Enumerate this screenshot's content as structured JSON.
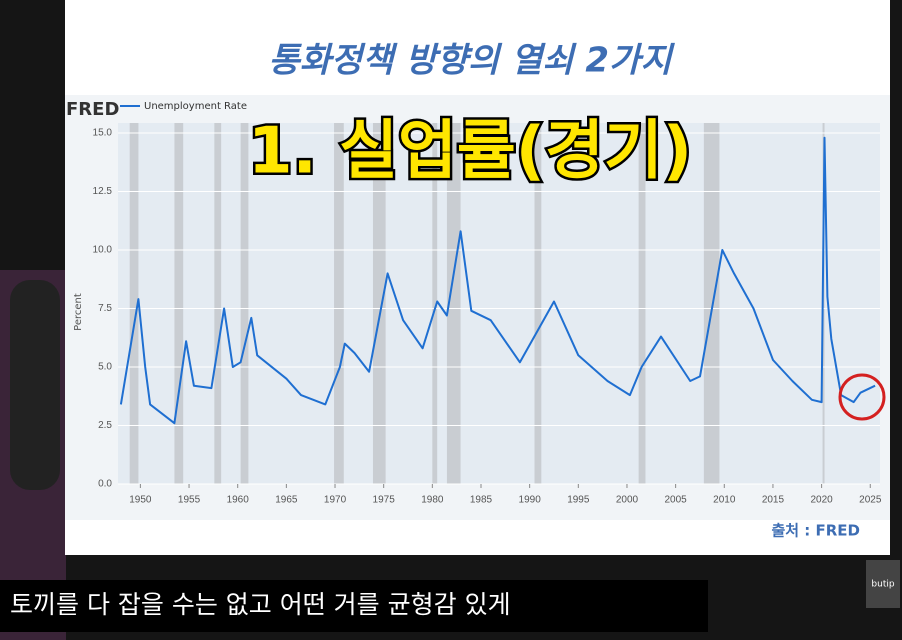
{
  "slide_title": "통화정책 방향의 열쇠 2가지",
  "overlay_text": "1. 실업률(경기)",
  "logo": "FRED",
  "source": "출처 : FRED",
  "caption": "토끼를 다 잡을 수는 없고 어떤 거를 균형감 있게",
  "watermark": "butip",
  "chart_data": {
    "type": "line",
    "ylabel": "Percent",
    "x": [
      1948.0,
      1949.8,
      1950.5,
      1951.0,
      1953.5,
      1954.7,
      1955.5,
      1957.3,
      1958.6,
      1959.5,
      1960.3,
      1961.4,
      1962.0,
      1965.0,
      1966.5,
      1969.0,
      1970.5,
      1971.0,
      1972.0,
      1973.5,
      1975.4,
      1977.0,
      1979.0,
      1980.5,
      1981.5,
      1982.9,
      1984.0,
      1986.0,
      1989.0,
      1992.5,
      1995.0,
      1998.0,
      2000.3,
      2001.5,
      2003.5,
      2006.5,
      2007.5,
      2009.8,
      2011.0,
      2013.0,
      2015.0,
      2017.0,
      2019.0,
      2020.0,
      2020.3,
      2020.6,
      2021.0,
      2022.0,
      2023.3,
      2024.0,
      2025.5
    ],
    "series": [
      {
        "name": "Unemployment Rate",
        "color": "#1f6fd1",
        "values": [
          3.4,
          7.9,
          5.0,
          3.4,
          2.6,
          6.1,
          4.2,
          4.1,
          7.5,
          5.0,
          5.2,
          7.1,
          5.5,
          4.5,
          3.8,
          3.4,
          5.0,
          6.0,
          5.6,
          4.8,
          9.0,
          7.0,
          5.8,
          7.8,
          7.2,
          10.8,
          7.4,
          7.0,
          5.2,
          7.8,
          5.5,
          4.4,
          3.8,
          5.0,
          6.3,
          4.4,
          4.6,
          10.0,
          9.0,
          7.5,
          5.3,
          4.4,
          3.6,
          3.5,
          14.8,
          8.0,
          6.2,
          3.8,
          3.5,
          3.9,
          4.2
        ]
      }
    ],
    "recessions": [
      [
        1948.9,
        1949.8
      ],
      [
        1953.5,
        1954.4
      ],
      [
        1957.6,
        1958.3
      ],
      [
        1960.3,
        1961.1
      ],
      [
        1969.9,
        1970.9
      ],
      [
        1973.9,
        1975.2
      ],
      [
        1980.0,
        1980.5
      ],
      [
        1981.5,
        1982.9
      ],
      [
        1990.5,
        1991.2
      ],
      [
        2001.2,
        2001.9
      ],
      [
        2007.9,
        2009.5
      ],
      [
        2020.1,
        2020.3
      ]
    ],
    "recession_color": "#c9cdd2",
    "xlim": [
      1947.7,
      2026
    ],
    "xticks": [
      1950,
      1955,
      1960,
      1965,
      1970,
      1975,
      1980,
      1985,
      1990,
      1995,
      2000,
      2005,
      2010,
      2015,
      2020,
      2025
    ],
    "ylim": [
      0,
      15
    ],
    "yticks": [
      {
        "value": 0,
        "label": "0.0"
      },
      2.5,
      {
        "value": 5,
        "label": "5.0"
      },
      7.5,
      {
        "value": 10,
        "label": "10.0"
      },
      12.5,
      {
        "value": 15,
        "label": "15.0"
      }
    ],
    "grid": true
  }
}
